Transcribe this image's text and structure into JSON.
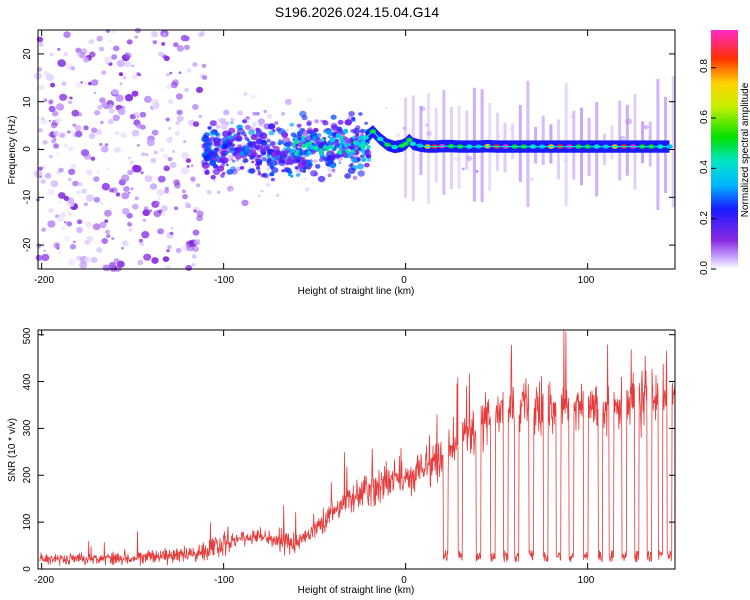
{
  "title": "S196.2026.024.15.04.G14",
  "chart_data": [
    {
      "type": "heatmap",
      "panel": "top",
      "xlabel": "Height of straight line (km)",
      "ylabel": "Frequency (Hz)",
      "xlim": [
        -202,
        148
      ],
      "ylim": [
        -25,
        25
      ],
      "xticks": [
        -200,
        -100,
        0,
        100
      ],
      "yticks": [
        -20,
        -10,
        0,
        10,
        20
      ],
      "xtick_labels": [
        "-200",
        "-100",
        "0",
        "100"
      ],
      "ytick_labels": [
        "-20",
        "-10",
        "0",
        "10",
        "20"
      ],
      "ridge": {
        "x": [
          -22,
          -18,
          -14,
          -10,
          -6,
          -2,
          0,
          2,
          4,
          8,
          12,
          16,
          20,
          25,
          30,
          35,
          40,
          45,
          50,
          55,
          60,
          65,
          70,
          75,
          80,
          85,
          90,
          95,
          100,
          105,
          110,
          115,
          120,
          125,
          130,
          135,
          140,
          145
        ],
        "y": [
          2.5,
          3.8,
          2.2,
          1.0,
          0.5,
          0.8,
          1.2,
          2.0,
          1.2,
          0.8,
          0.6,
          0.6,
          0.7,
          0.7,
          0.6,
          0.6,
          0.6,
          0.7,
          0.6,
          0.6,
          0.6,
          0.6,
          0.6,
          0.6,
          0.6,
          0.6,
          0.6,
          0.6,
          0.6,
          0.6,
          0.6,
          0.6,
          0.6,
          0.6,
          0.6,
          0.6,
          0.6,
          0.6
        ]
      },
      "colorbar": {
        "label": "Normalized spectral amplitude",
        "range": [
          0.0,
          0.95
        ],
        "ticks": [
          0.0,
          0.2,
          0.4,
          0.6,
          0.8
        ],
        "tick_labels": [
          "0.0",
          "0.2",
          "0.4",
          "0.6",
          "0.8"
        ]
      }
    },
    {
      "type": "line",
      "panel": "bottom",
      "xlabel": "Height of straight line (km)",
      "ylabel": "SNR (10 * v/v)",
      "xlim": [
        -202,
        148
      ],
      "ylim": [
        0,
        510
      ],
      "xticks": [
        -200,
        -100,
        0,
        100
      ],
      "yticks": [
        0,
        100,
        200,
        300,
        400,
        500
      ],
      "xtick_labels": [
        "-200",
        "-100",
        "0",
        "100"
      ],
      "ytick_labels": [
        "0",
        "100",
        "200",
        "300",
        "400",
        "500"
      ],
      "series": [
        {
          "name": "SNR",
          "color": "#e53b3b",
          "x": [
            -200,
            -180,
            -160,
            -140,
            -120,
            -110,
            -100,
            -90,
            -80,
            -70,
            -60,
            -50,
            -40,
            -30,
            -20,
            -10,
            0,
            10,
            20,
            30,
            40,
            50,
            60,
            70,
            80,
            90,
            100,
            110,
            120,
            130,
            140,
            148
          ],
          "y": [
            22,
            22,
            24,
            26,
            30,
            40,
            55,
            65,
            70,
            60,
            55,
            85,
            120,
            150,
            165,
            185,
            195,
            215,
            235,
            275,
            305,
            325,
            345,
            355,
            345,
            340,
            345,
            355,
            355,
            360,
            370,
            370
          ],
          "dropouts_x": [
            22,
            30,
            40,
            48,
            55,
            61,
            69,
            77,
            84,
            91,
            99,
            107,
            113,
            120,
            127,
            134,
            140,
            145
          ],
          "dropout_floor": 15
        }
      ]
    }
  ],
  "colors": {
    "series": "#e53b3b",
    "background": "#ffffff",
    "axis": "#000000"
  }
}
